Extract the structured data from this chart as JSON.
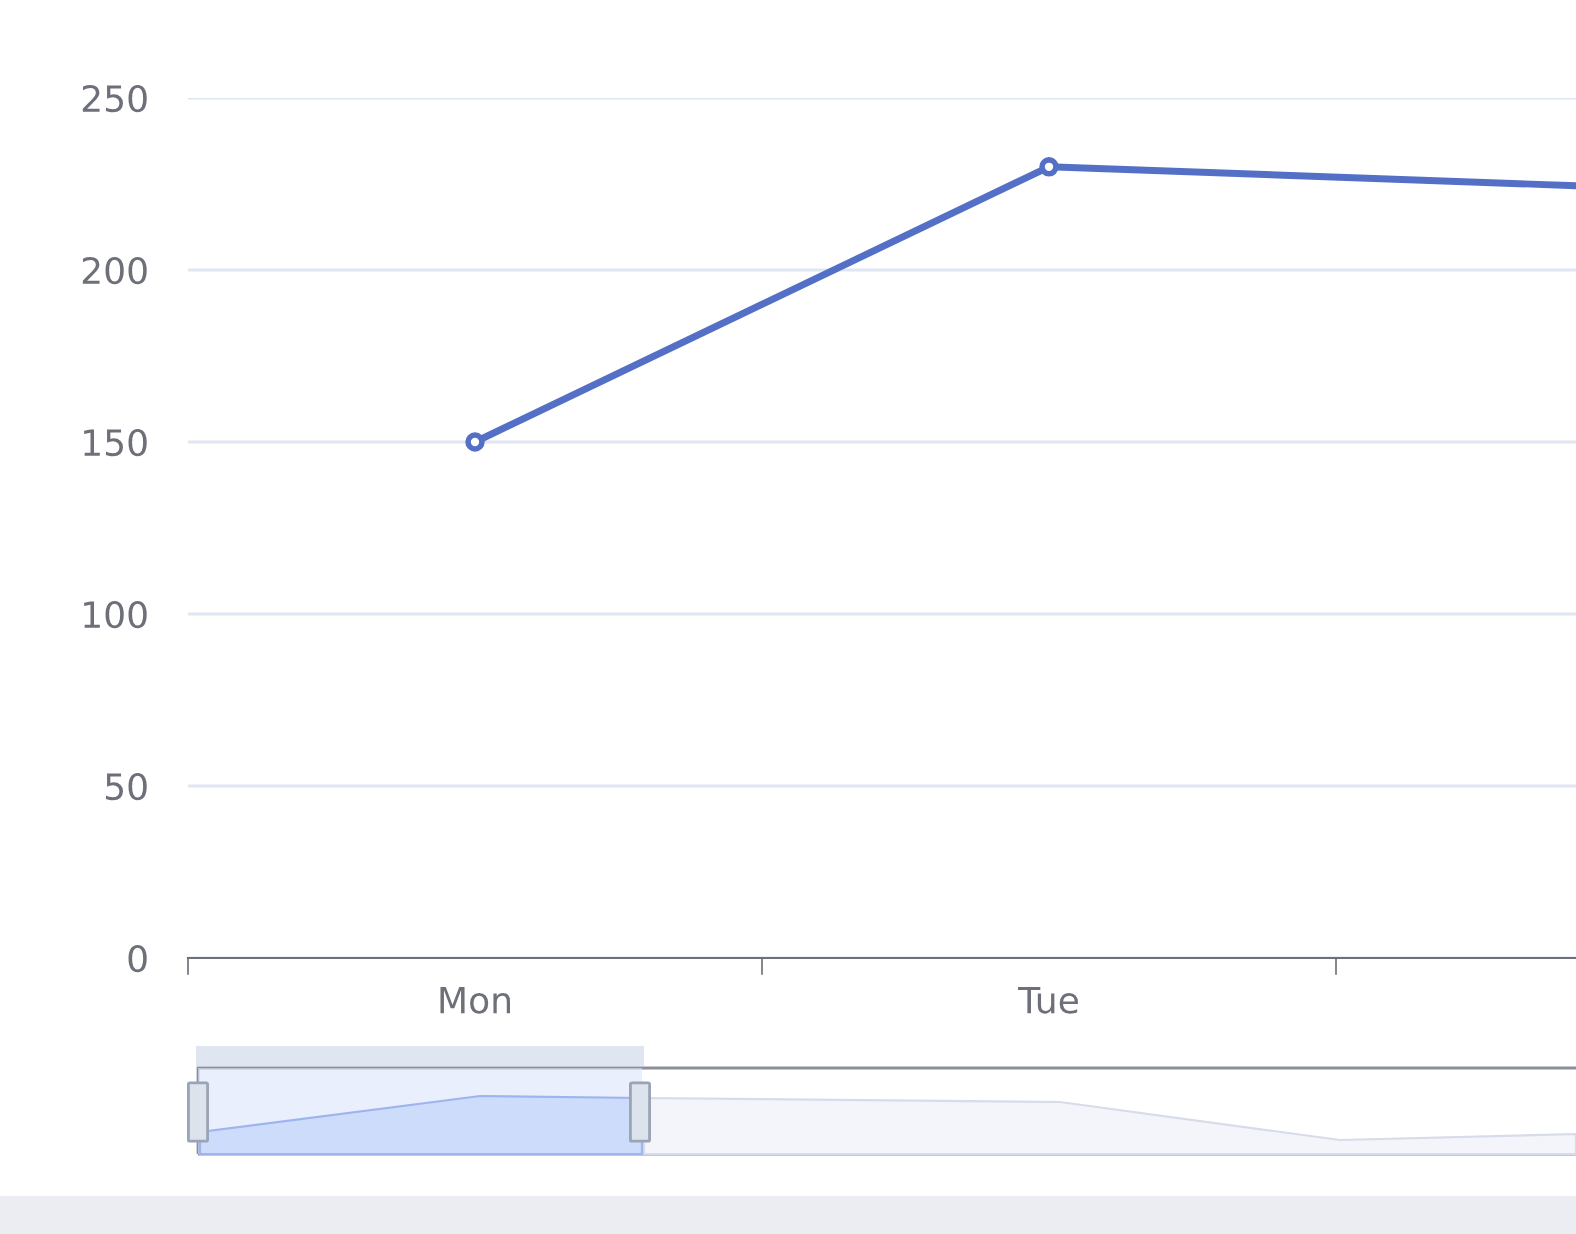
{
  "chart_data": {
    "type": "line",
    "categories": [
      "Mon",
      "Tue",
      null
    ],
    "series": [
      {
        "color": "#5470c6",
        "values": [
          150,
          230,
          224
        ]
      }
    ],
    "ylim": [
      0,
      250
    ],
    "yticks": [
      0,
      50,
      100,
      150,
      200,
      250
    ],
    "grid": "y",
    "marker": "circle",
    "line_style": "solid"
  }
}
